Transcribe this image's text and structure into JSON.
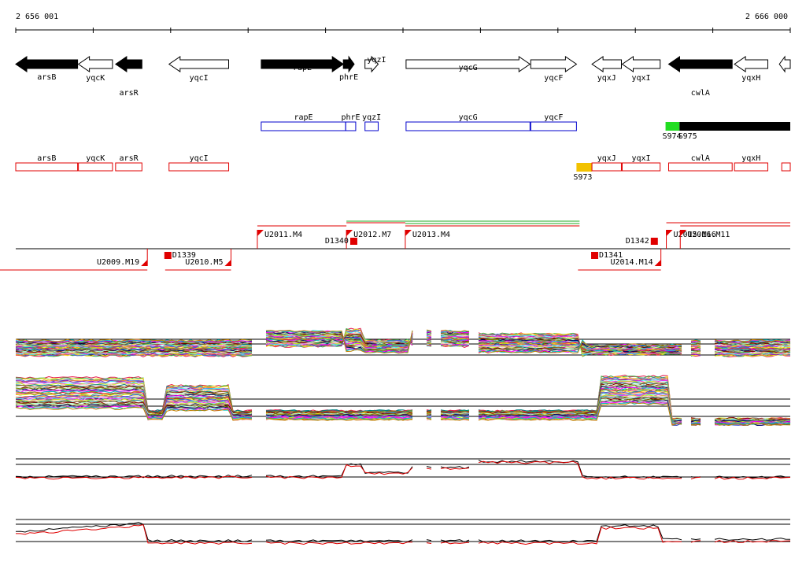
{
  "axis": {
    "start": 2656001,
    "end": 2666000,
    "start_label": "2 656 001",
    "end_label": "2 666 000"
  },
  "genes": [
    {
      "name": "arsB",
      "start": 2656001,
      "end": 2656800,
      "strand": "-",
      "fill": "black"
    },
    {
      "name": "yqcK",
      "start": 2656810,
      "end": 2657250,
      "strand": "-",
      "fill": "white"
    },
    {
      "name": "arsR",
      "start": 2657290,
      "end": 2657630,
      "strand": "-",
      "fill": "black"
    },
    {
      "name": "yqcI",
      "start": 2657980,
      "end": 2658750,
      "strand": "-",
      "fill": "white"
    },
    {
      "name": "rapE",
      "start": 2659170,
      "end": 2660230,
      "strand": "+",
      "fill": "black"
    },
    {
      "name": "phrE",
      "start": 2660230,
      "end": 2660370,
      "strand": "+",
      "fill": "black"
    },
    {
      "name": "yqzI",
      "start": 2660510,
      "end": 2660680,
      "strand": "+",
      "fill": "white"
    },
    {
      "name": "yqcG",
      "start": 2661040,
      "end": 2662640,
      "strand": "+",
      "fill": "white"
    },
    {
      "name": "yqcF",
      "start": 2662650,
      "end": 2663240,
      "strand": "+",
      "fill": "white"
    },
    {
      "name": "yqxJ",
      "start": 2663440,
      "end": 2663820,
      "strand": "-",
      "fill": "white"
    },
    {
      "name": "yqxI",
      "start": 2663830,
      "end": 2664320,
      "strand": "-",
      "fill": "white"
    },
    {
      "name": "cwlA",
      "start": 2664430,
      "end": 2665250,
      "strand": "-",
      "fill": "black"
    },
    {
      "name": "yqxH",
      "start": 2665280,
      "end": 2665710,
      "strand": "-",
      "fill": "white"
    },
    {
      "name": "",
      "start": 2665860,
      "end": 2666000,
      "strand": "-",
      "fill": "white"
    }
  ],
  "blue_features": [
    {
      "name": "rapE",
      "start": 2659170,
      "end": 2660260
    },
    {
      "name": "phrE",
      "start": 2660260,
      "end": 2660390
    },
    {
      "name": "yqzI",
      "start": 2660510,
      "end": 2660680
    },
    {
      "name": "yqcG",
      "start": 2661040,
      "end": 2662640
    },
    {
      "name": "yqcF",
      "start": 2662650,
      "end": 2663240
    }
  ],
  "red_features": [
    {
      "name": "arsB",
      "start": 2656001,
      "end": 2656800
    },
    {
      "name": "yqcK",
      "start": 2656810,
      "end": 2657250
    },
    {
      "name": "arsR",
      "start": 2657290,
      "end": 2657630
    },
    {
      "name": "yqcI",
      "start": 2657980,
      "end": 2658750
    },
    {
      "name": "yqxJ",
      "start": 2663440,
      "end": 2663820
    },
    {
      "name": "yqxI",
      "start": 2663830,
      "end": 2664320
    },
    {
      "name": "cwlA",
      "start": 2664430,
      "end": 2665250
    },
    {
      "name": "yqxH",
      "start": 2665280,
      "end": 2665710
    },
    {
      "name": "",
      "start": 2665890,
      "end": 2666000
    }
  ],
  "segments": [
    {
      "name": "S973",
      "start": 2663240,
      "end": 2663440,
      "color": "#f2c200",
      "label_below": true
    },
    {
      "name": "S974",
      "start": 2664390,
      "end": 2664570,
      "color": "#22dd22",
      "label_below": true
    },
    {
      "name": "S975",
      "start": 2664570,
      "end": 2666000,
      "color": "#000000",
      "label_below": true
    }
  ],
  "transcripts_upper": [
    {
      "name": "U2011.M4",
      "start": 2659120,
      "end": 2660270
    },
    {
      "name": "U2012.M7",
      "start": 2660270,
      "end": 2661030
    },
    {
      "name": "U2013.M4",
      "start": 2661030,
      "end": 2663280
    },
    {
      "name": "U2015.M16",
      "start": 2664400,
      "end": 2666000
    },
    {
      "name": "U2016.M11",
      "start": 2664580,
      "end": 2666000
    }
  ],
  "transcripts_lower": [
    {
      "name": "U2009.M19",
      "start": 2656001,
      "end": 2657700
    },
    {
      "name": "U2010.M5",
      "start": 2657950,
      "end": 2658780
    },
    {
      "name": "U2014.M14",
      "start": 2663280,
      "end": 2664330
    }
  ],
  "terminators_upper": [
    {
      "name": "D1340",
      "pos": 2660360
    },
    {
      "name": "D1342",
      "pos": 2664240
    }
  ],
  "terminators_lower": [
    {
      "name": "D1339",
      "pos": 2657960
    },
    {
      "name": "D1341",
      "pos": 2663470
    }
  ]
}
